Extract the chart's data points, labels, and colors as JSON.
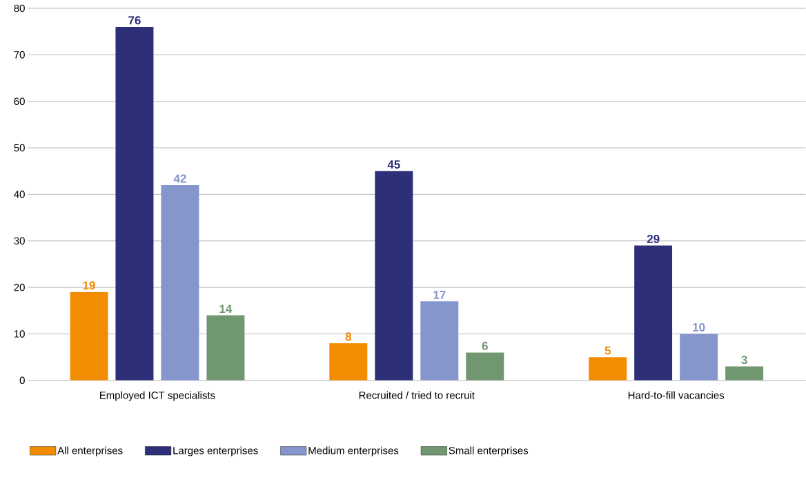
{
  "chart_data": {
    "type": "bar",
    "categories": [
      "Employed ICT specialists",
      "Recruited / tried to recruit",
      "Hard-to-fill vacancies"
    ],
    "series": [
      {
        "name": "All enterprises",
        "color": "#f28c00",
        "values": [
          19,
          8,
          5
        ]
      },
      {
        "name": "Larges enterprises",
        "color": "#2d3079",
        "values": [
          76,
          45,
          29
        ]
      },
      {
        "name": "Medium enterprises",
        "color": "#8496cc",
        "values": [
          42,
          17,
          10
        ]
      },
      {
        "name": "Small enterprises",
        "color": "#70976f",
        "values": [
          14,
          6,
          3
        ]
      }
    ],
    "ylim": [
      0,
      80
    ],
    "yticks": [
      0,
      10,
      20,
      30,
      40,
      50,
      60,
      70,
      80
    ],
    "grid": "y",
    "legend": "bottom",
    "data_labels": true
  }
}
